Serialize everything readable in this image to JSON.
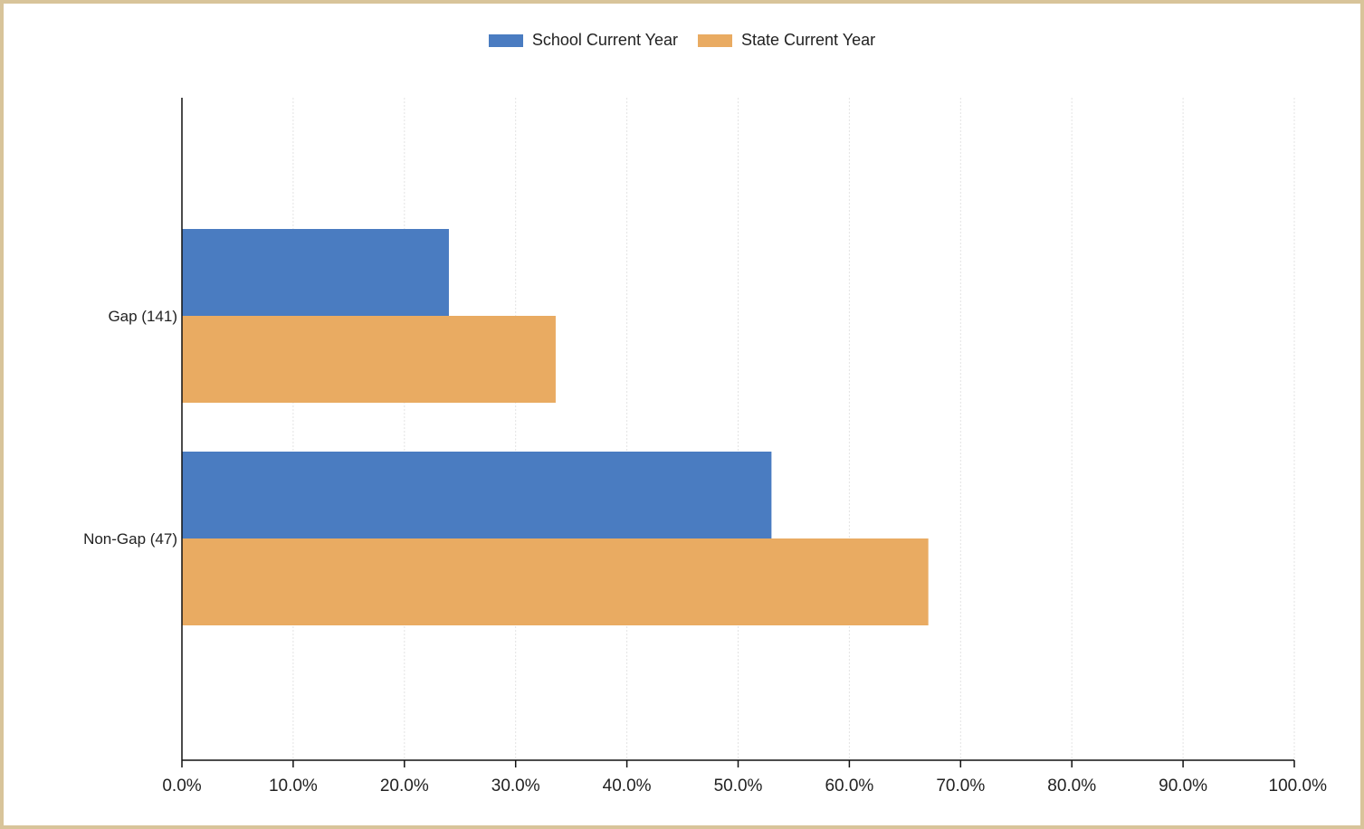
{
  "chart_data": {
    "type": "bar",
    "orientation": "horizontal",
    "categories": [
      "Gap (141)",
      "Non-Gap (47)"
    ],
    "series": [
      {
        "name": "School Current Year",
        "color": "#4a7cc1",
        "values": [
          24.0,
          53.0
        ]
      },
      {
        "name": "State Current Year",
        "color": "#e9ab62",
        "values": [
          33.6,
          67.1
        ]
      }
    ],
    "x_ticks": [
      "0.0%",
      "10.0%",
      "20.0%",
      "30.0%",
      "40.0%",
      "50.0%",
      "60.0%",
      "70.0%",
      "80.0%",
      "90.0%",
      "100.0%"
    ],
    "xlim": [
      0,
      100
    ],
    "grid": true,
    "legend_position": "top-center",
    "title": "",
    "xlabel": "",
    "ylabel": ""
  }
}
